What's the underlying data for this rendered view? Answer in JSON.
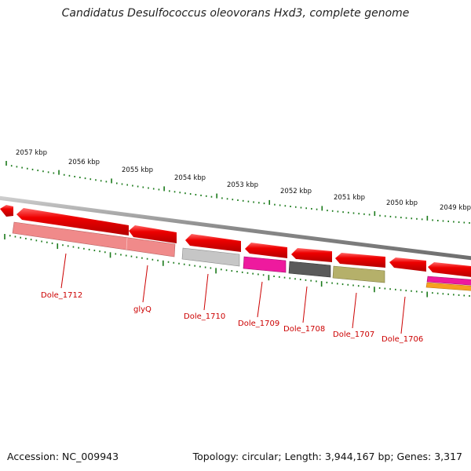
{
  "title": "Candidatus Desulfococcus oleovorans Hxd3, complete genome",
  "accession": "Accession: NC_009943",
  "summary": "Topology: circular; Length: 3,944,167 bp; Genes: 3,317",
  "kbp_labels": [
    "2057 kbp",
    "2056 kbp",
    "2055 kbp",
    "2054 kbp",
    "2053 kbp",
    "2052 kbp",
    "2051 kbp",
    "2050 kbp",
    "2049 kbp"
  ],
  "genes": [
    {
      "name": "Dole_1712",
      "feature_color": "#f08a8a"
    },
    {
      "name": "glyQ",
      "feature_color": "#f08a8a"
    },
    {
      "name": "Dole_1710",
      "feature_color": "#bfbfbf"
    },
    {
      "name": "Dole_1709",
      "feature_color": "#ee1a9e"
    },
    {
      "name": "Dole_1708",
      "feature_color": "#5a5a5a"
    },
    {
      "name": "Dole_1707",
      "feature_color": "#b5b06a"
    },
    {
      "name": "Dole_1706",
      "feature_color": "#ee1a9e"
    }
  ],
  "colors": {
    "cds_red": "#ee0000",
    "backbone": "#8a8a8a",
    "tick_green": "#1a7a1a",
    "label_red": "#cc0000"
  }
}
